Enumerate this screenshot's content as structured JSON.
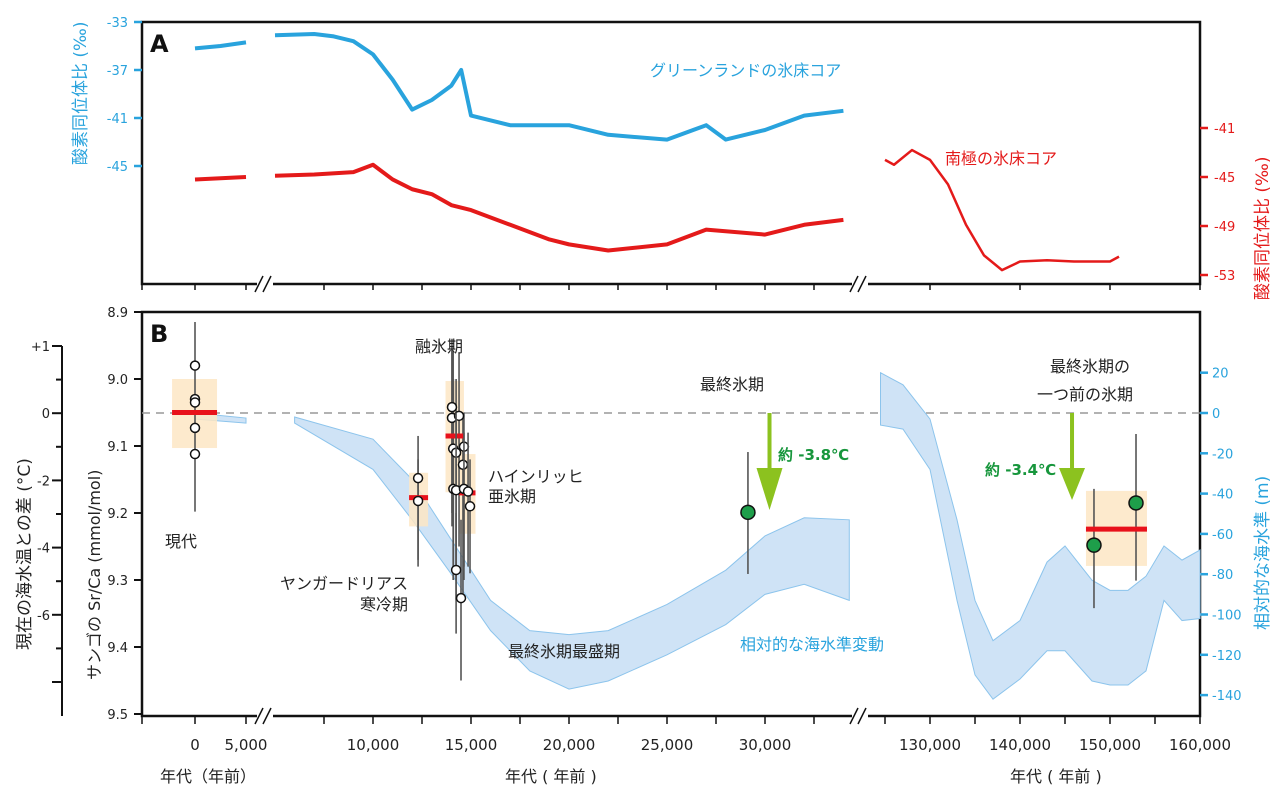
{
  "colors": {
    "greenland": "#29a3dd",
    "antarctic": "#e41a1a",
    "sea_band": "#cfe3f6",
    "sea_edge": "#8cc4ec",
    "coral_box": "#fde6c4",
    "mean_bar": "#e8111b",
    "glacial_point": "#1e9e4a",
    "arrow": "#8cc21f",
    "arrow_text": "#17963c"
  },
  "chart_data": [
    {
      "panel": "A",
      "type": "line",
      "yaxis_left": {
        "label": "酸素同位体比 (‰)",
        "ticks": [
          "-33",
          "-37",
          "-41",
          "-45"
        ],
        "tick_values": [
          -33,
          -37,
          -41,
          -45
        ]
      },
      "yaxis_right": {
        "label": "酸素同位体比 (‰)",
        "ticks": [
          "-41",
          "-45",
          "-49",
          "-53"
        ],
        "tick_values": [
          -41,
          -45,
          -49,
          -53
        ]
      },
      "series": [
        {
          "name": "グリーンランドの氷床コア",
          "axis": "left",
          "segments": [
            [
              [
                0,
                -35.2
              ],
              [
                2500,
                -35.0
              ],
              [
                5000,
                -34.7
              ]
            ],
            [
              [
                5000,
                -34.1
              ],
              [
                7000,
                -34.0
              ],
              [
                8000,
                -34.2
              ],
              [
                9000,
                -34.6
              ],
              [
                10000,
                -35.7
              ],
              [
                11000,
                -37.8
              ],
              [
                12000,
                -40.3
              ],
              [
                13000,
                -39.5
              ],
              [
                14000,
                -38.3
              ],
              [
                14500,
                -37.0
              ],
              [
                15000,
                -40.8
              ],
              [
                17000,
                -41.6
              ],
              [
                20000,
                -41.6
              ],
              [
                22000,
                -42.4
              ],
              [
                25000,
                -42.8
              ],
              [
                27000,
                -41.6
              ],
              [
                28000,
                -42.8
              ],
              [
                30000,
                -42.0
              ],
              [
                32000,
                -40.8
              ],
              [
                34000,
                -40.4
              ]
            ]
          ]
        },
        {
          "name": "南極の氷床コア",
          "axis": "right",
          "segments": [
            [
              [
                0,
                -45.2
              ],
              [
                2500,
                -45.1
              ],
              [
                5000,
                -45.0
              ]
            ],
            [
              [
                5000,
                -44.9
              ],
              [
                7000,
                -44.8
              ],
              [
                9000,
                -44.6
              ],
              [
                10000,
                -44.0
              ],
              [
                11000,
                -45.2
              ],
              [
                12000,
                -46.0
              ],
              [
                13000,
                -46.4
              ],
              [
                14000,
                -47.3
              ],
              [
                15000,
                -47.7
              ],
              [
                17000,
                -48.9
              ],
              [
                19000,
                -50.1
              ],
              [
                20000,
                -50.5
              ],
              [
                22000,
                -51.0
              ],
              [
                25000,
                -50.5
              ],
              [
                27000,
                -49.3
              ],
              [
                30000,
                -49.7
              ],
              [
                32000,
                -48.9
              ],
              [
                34000,
                -48.5
              ]
            ],
            [
              [
                125000,
                -43.6
              ],
              [
                126000,
                -44.0
              ],
              [
                128000,
                -42.8
              ],
              [
                130000,
                -43.6
              ],
              [
                132000,
                -45.6
              ],
              [
                134000,
                -48.9
              ],
              [
                136000,
                -51.4
              ],
              [
                138000,
                -52.6
              ],
              [
                140000,
                -51.9
              ],
              [
                143000,
                -51.8
              ],
              [
                146000,
                -51.9
              ],
              [
                150000,
                -51.9
              ],
              [
                151000,
                -51.5
              ]
            ]
          ]
        }
      ],
      "panel_label": "A"
    },
    {
      "panel": "B",
      "type": "scatter",
      "xaxis": {
        "labels": [
          "年代（年前）",
          "年代 ( 年前 )",
          "年代 ( 年前 )"
        ],
        "ticks": [
          {
            "v": 0,
            "s": 0,
            "l": "0"
          },
          {
            "v": 5000,
            "s": 0,
            "l": "5,000"
          },
          {
            "v": 10000,
            "s": 1,
            "l": "10,000"
          },
          {
            "v": 15000,
            "s": 1,
            "l": "15,000"
          },
          {
            "v": 20000,
            "s": 1,
            "l": "20,000"
          },
          {
            "v": 25000,
            "s": 1,
            "l": "25,000"
          },
          {
            "v": 30000,
            "s": 1,
            "l": "30,000"
          },
          {
            "v": 130000,
            "s": 2,
            "l": "130,000"
          },
          {
            "v": 140000,
            "s": 2,
            "l": "140,000"
          },
          {
            "v": 150000,
            "s": 2,
            "l": "150,000"
          },
          {
            "v": 160000,
            "s": 2,
            "l": "160,000"
          }
        ]
      },
      "yaxis_srca": {
        "label": "サンゴの Sr/Ca (mmol/mol)",
        "ticks": [
          "8.9",
          "9.0",
          "9.1",
          "9.2",
          "9.3",
          "9.4",
          "9.5"
        ],
        "tick_values": [
          8.9,
          9.0,
          9.1,
          9.2,
          9.3,
          9.4,
          9.5
        ]
      },
      "yaxis_temp": {
        "label": "現在の海水温との差 (°C)",
        "ticks": [
          "+1",
          "0",
          "-2",
          "-4",
          "-6"
        ]
      },
      "yaxis_sea": {
        "label": "相対的な海水準 (m)",
        "ticks": [
          "20",
          "0",
          "-20",
          "-40",
          "-60",
          "-80",
          "-100",
          "-120",
          "-140"
        ],
        "tick_values": [
          20,
          0,
          -20,
          -40,
          -60,
          -80,
          -100,
          -120,
          -140
        ]
      },
      "sea_level_band": {
        "name": "相対的な海水準変動",
        "segments": [
          [
            [
              0,
              0,
              -3
            ],
            [
              5000,
              -2.5,
              -5
            ]
          ],
          [
            [
              6000,
              -2,
              -5
            ],
            [
              10000,
              -13,
              -28
            ],
            [
              12000,
              -33,
              -53
            ],
            [
              14000,
              -63,
              -80
            ],
            [
              16000,
              -93,
              -108
            ],
            [
              18000,
              -108,
              -128
            ],
            [
              20000,
              -110,
              -137
            ],
            [
              22000,
              -108,
              -133
            ],
            [
              25000,
              -95,
              -120
            ],
            [
              28000,
              -78,
              -105
            ],
            [
              30000,
              -61,
              -90
            ],
            [
              32000,
              -52,
              -85
            ],
            [
              34300,
              -53,
              -93
            ]
          ],
          [
            [
              124500,
              20,
              -6
            ],
            [
              127000,
              14,
              -8
            ],
            [
              130000,
              -3,
              -28
            ],
            [
              133000,
              -53,
              -93
            ],
            [
              135000,
              -93,
              -130
            ],
            [
              137000,
              -113,
              -142
            ],
            [
              140000,
              -103,
              -132
            ],
            [
              143000,
              -74,
              -118
            ],
            [
              145000,
              -66,
              -118
            ],
            [
              148000,
              -83,
              -133
            ],
            [
              150000,
              -88,
              -135
            ],
            [
              152000,
              -88,
              -135
            ],
            [
              154000,
              -81,
              -128
            ],
            [
              156000,
              -66,
              -93
            ],
            [
              158000,
              -73,
              -103
            ],
            [
              160000,
              -68,
              -102
            ]
          ]
        ]
      },
      "coral_groups": [
        {
          "box_age": [
            -2250,
            2160
          ],
          "box_srca": [
            9.0,
            9.103
          ],
          "mean": 9.05,
          "points": [
            {
              "age": 0,
              "srca": 8.98,
              "err": [
                8.915,
                9.198
              ]
            },
            {
              "age": 0,
              "srca": 9.03
            },
            {
              "age": 0,
              "srca": 9.035
            },
            {
              "age": 0,
              "srca": 9.073
            },
            {
              "age": 0,
              "srca": 9.112
            }
          ]
        },
        {
          "box_age": [
            11840,
            12810
          ],
          "box_srca": [
            9.14,
            9.22
          ],
          "mean": 9.177,
          "points": [
            {
              "age": 12300,
              "srca": 9.148,
              "err": [
                9.085,
                9.27
              ]
            },
            {
              "age": 12300,
              "srca": 9.182,
              "err": [
                9.12,
                9.28
              ]
            }
          ]
        },
        {
          "box_age": [
            13700,
            14640
          ],
          "box_srca": [
            9.003,
            9.169
          ],
          "mean": 9.085,
          "points": [
            {
              "age": 14030,
              "srca": 9.042,
              "err": [
                8.94,
                9.22
              ]
            },
            {
              "age": 14030,
              "srca": 9.058,
              "err": [
                8.95,
                9.2
              ]
            },
            {
              "age": 14390,
              "srca": 9.055,
              "err": [
                8.96,
                9.25
              ]
            },
            {
              "age": 14090,
              "srca": 9.104,
              "err": [
                8.96,
                9.3
              ]
            },
            {
              "age": 14240,
              "srca": 9.11,
              "err": [
                9.0,
                9.33
              ]
            },
            {
              "age": 14640,
              "srca": 9.101,
              "err": [
                9.05,
                9.28
              ]
            },
            {
              "age": 14590,
              "srca": 9.128,
              "err": [
                9.05,
                9.33
              ]
            },
            {
              "age": 14100,
              "srca": 9.164,
              "err": [
                9.0,
                9.3
              ]
            }
          ]
        },
        {
          "box_age": [
            14390,
            15230
          ],
          "box_srca": [
            9.112,
            9.231
          ],
          "mean": 9.17,
          "points": [
            {
              "age": 14240,
              "srca": 9.166,
              "err": [
                9.05,
                9.3
              ]
            },
            {
              "age": 14640,
              "srca": 9.164,
              "err": [
                9.08,
                9.3
              ]
            },
            {
              "age": 14850,
              "srca": 9.168,
              "err": [
                9.08,
                9.28
              ]
            },
            {
              "age": 14950,
              "srca": 9.19,
              "err": [
                9.12,
                9.29
              ]
            },
            {
              "age": 14240,
              "srca": 9.285,
              "err": [
                9.2,
                9.38
              ]
            },
            {
              "age": 14490,
              "srca": 9.327,
              "err": [
                9.21,
                9.45
              ]
            }
          ]
        },
        {
          "glacial": true,
          "points": [
            {
              "age": 29130,
              "srca": 9.199,
              "err": [
                9.109,
                9.291
              ]
            }
          ]
        },
        {
          "glacial": true,
          "box_age": [
            147330,
            154110
          ],
          "box_srca": [
            9.167,
            9.279
          ],
          "mean": 9.224,
          "points": [
            {
              "age": 148220,
              "srca": 9.248,
              "err": [
                9.164,
                9.342
              ]
            },
            {
              "age": 152890,
              "srca": 9.185,
              "err": [
                9.082,
                9.301
              ]
            }
          ]
        }
      ],
      "arrows": [
        {
          "age": 30230,
          "label": "約 -3.8℃"
        },
        {
          "age": 145780,
          "label": "約 -3.4℃"
        }
      ],
      "panel_label": "B"
    }
  ],
  "annotations": {
    "greenland": "グリーンランドの氷床コア",
    "antarctic": "南極の氷床コア",
    "deglaciation": "融氷期",
    "last_glacial": "最終氷期",
    "penultimate_1": "最終氷期の",
    "penultimate_2": "一つ前の氷期",
    "heinrich_1": "ハインリッヒ",
    "heinrich_2": "亜氷期",
    "yd_1": "ヤンガードリアス",
    "yd_2": "寒冷期",
    "lgm": "最終氷期最盛期",
    "sea_level": "相対的な海水準変動",
    "modern": "現代"
  }
}
